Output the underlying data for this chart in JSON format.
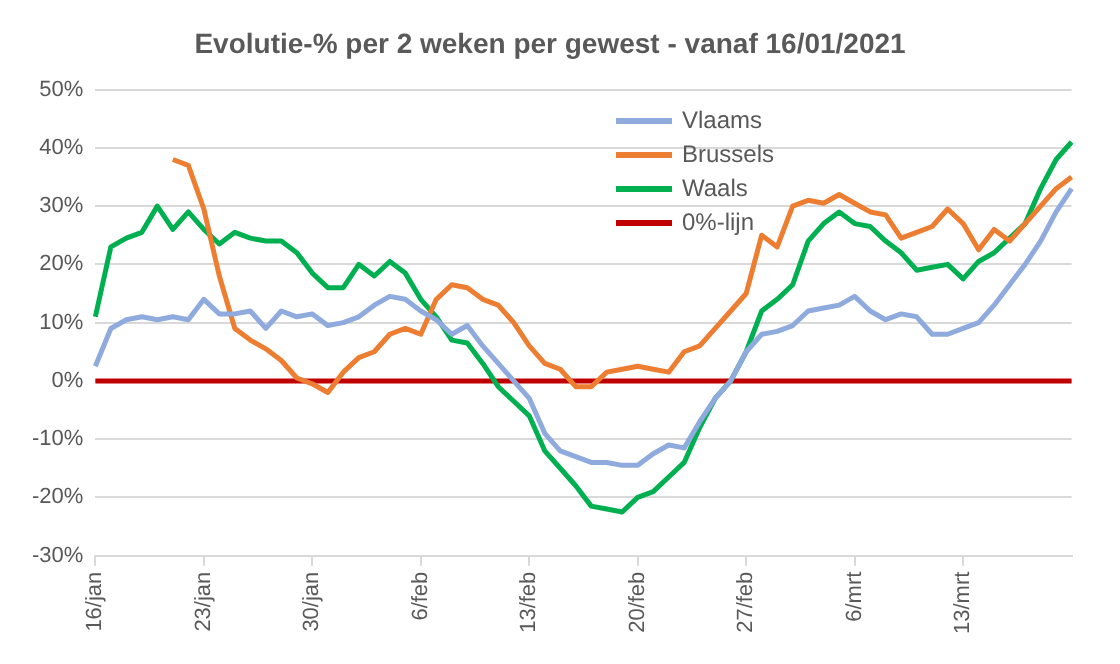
{
  "chart_data": {
    "type": "line",
    "title": "Evolutie-% per 2 weken per gewest - vanaf 16/01/2021",
    "categories": [
      "16/jan",
      null,
      null,
      null,
      null,
      null,
      null,
      "23/jan",
      null,
      null,
      null,
      null,
      null,
      null,
      "30/jan",
      null,
      null,
      null,
      null,
      null,
      null,
      "6/feb",
      null,
      null,
      null,
      null,
      null,
      null,
      "13/feb",
      null,
      null,
      null,
      null,
      null,
      null,
      "20/feb",
      null,
      null,
      null,
      null,
      null,
      null,
      "27/feb",
      null,
      null,
      null,
      null,
      null,
      null,
      "6/mrt",
      null,
      null,
      null,
      null,
      null,
      null,
      "13/mrt",
      null,
      null,
      null,
      null,
      null,
      null,
      null
    ],
    "series": [
      {
        "name": "Vlaams",
        "color": "#8faadc",
        "values": [
          2.5,
          9,
          10.5,
          11,
          10.5,
          11,
          10.5,
          14,
          11.5,
          11.5,
          12,
          9,
          12,
          11,
          11.5,
          9.5,
          10,
          11,
          13,
          14.5,
          14,
          12,
          10.5,
          8,
          9.5,
          6,
          3,
          0,
          -3,
          -9,
          -12,
          -13,
          -14,
          -14,
          -14.5,
          -14.5,
          -12.5,
          -11,
          -11.5,
          -7,
          -3,
          0,
          5,
          8,
          8.5,
          9.5,
          12,
          12.5,
          13,
          14.5,
          12,
          10.5,
          11.5,
          11,
          8,
          8,
          9,
          10,
          13,
          16.5,
          20,
          24,
          29,
          33
        ]
      },
      {
        "name": "Brussels",
        "color": "#ed7d31",
        "values": [
          null,
          null,
          null,
          null,
          null,
          38,
          37,
          29.5,
          18,
          9,
          7,
          5.5,
          3.5,
          0.5,
          -0.5,
          -2,
          1.5,
          4,
          5,
          8,
          9,
          8,
          14,
          16.5,
          16,
          14,
          13,
          10,
          6,
          3,
          2,
          -1,
          -1,
          1.5,
          2,
          2.5,
          2,
          1.5,
          5,
          6,
          9,
          12,
          15,
          25,
          23,
          30,
          31,
          30.5,
          32,
          30.5,
          29,
          28.5,
          24.5,
          25.5,
          26.5,
          29.5,
          27,
          22.5,
          26,
          24,
          27,
          30,
          33,
          35
        ]
      },
      {
        "name": "Waals",
        "color": "#00b050",
        "values": [
          11,
          23,
          24.5,
          25.5,
          30,
          26,
          29,
          26,
          23.5,
          25.5,
          24.5,
          24,
          24,
          22,
          18.5,
          16,
          16,
          20,
          18,
          20.5,
          18.5,
          14,
          11,
          7,
          6.5,
          3,
          -1,
          -3.5,
          -6,
          -12,
          -15,
          -18,
          -21.5,
          -22,
          -22.5,
          -20,
          -19,
          -16.5,
          -14,
          -8,
          -3,
          0,
          5,
          12,
          14,
          16.5,
          24,
          27,
          29,
          27,
          26.5,
          24,
          22,
          19,
          19.5,
          20,
          17.5,
          20.5,
          22,
          24.5,
          27,
          33,
          38,
          41
        ]
      },
      {
        "name": "0%-lijn",
        "color": "#c00000",
        "values": [
          0,
          0,
          0,
          0,
          0,
          0,
          0,
          0,
          0,
          0,
          0,
          0,
          0,
          0,
          0,
          0,
          0,
          0,
          0,
          0,
          0,
          0,
          0,
          0,
          0,
          0,
          0,
          0,
          0,
          0,
          0,
          0,
          0,
          0,
          0,
          0,
          0,
          0,
          0,
          0,
          0,
          0,
          0,
          0,
          0,
          0,
          0,
          0,
          0,
          0,
          0,
          0,
          0,
          0,
          0,
          0,
          0,
          0,
          0,
          0,
          0,
          0,
          0,
          0
        ]
      }
    ],
    "ylim": [
      -30,
      50
    ],
    "yticks": [
      {
        "value": -30,
        "label": "-30%"
      },
      {
        "value": -20,
        "label": "-20%"
      },
      {
        "value": -10,
        "label": "-10%"
      },
      {
        "value": 0,
        "label": "0%"
      },
      {
        "value": 10,
        "label": "10%"
      },
      {
        "value": 20,
        "label": "20%"
      },
      {
        "value": 30,
        "label": "30%"
      },
      {
        "value": 40,
        "label": "40%"
      },
      {
        "value": 50,
        "label": "50%"
      }
    ],
    "grid": "y",
    "legend": "top right",
    "marker": "none"
  }
}
